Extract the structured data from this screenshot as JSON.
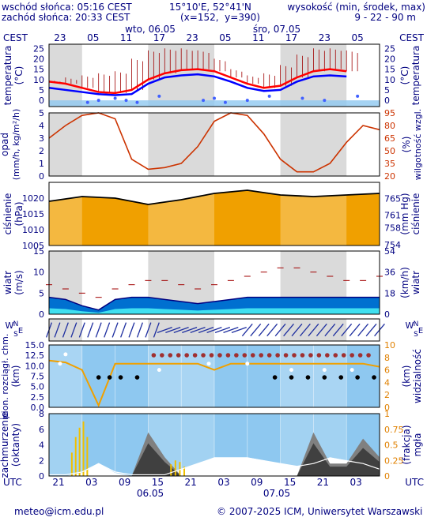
{
  "header": {
    "sunrise": "wschód słońca: 05:16 CEST",
    "sunset": "zachód słońca: 20:33 CEST",
    "coords": "15°10'E, 52°41'N",
    "grid": "(x=152,  y=390)",
    "elev_title": "wysokość (min, środek, max)",
    "elev_values": "9 - 22 - 90 m"
  },
  "top_axis": {
    "tz": "CEST",
    "day1": "wto, 06.05",
    "day2": "śro, 07.05",
    "hours": [
      "23",
      "05",
      "11",
      "17",
      "23",
      "05",
      "11",
      "17",
      "23",
      "05"
    ]
  },
  "bottom_axis": {
    "tz": "UTC",
    "hours": [
      "21",
      "03",
      "09",
      "15",
      "21",
      "03",
      "09",
      "15",
      "21",
      "03"
    ],
    "date1": "06.05",
    "date2": "07.05"
  },
  "footer": {
    "email": "meteo@icm.edu.pl",
    "copyright": "© 2007-2025 ICM, Uniwersytet Warszawski"
  },
  "colors": {
    "night": "#d3d3d3",
    "temp": "#ff0000",
    "dew": "#0000ff",
    "precip": "#00a0ff",
    "humidity": "#cc3300",
    "pressure_fill": "#f0a000",
    "wind": "#0070d0",
    "cloud_bg": "#8ec8f0",
    "visibility": "#f0a000"
  },
  "chart_data": [
    {
      "type": "line",
      "panel": "temperature",
      "ylabel_left": "temperatura (°C)",
      "ylabel_right": "temperatura (°C)",
      "yticks": [
        0,
        5,
        10,
        15,
        20,
        25
      ],
      "ylim": [
        -3,
        27
      ],
      "x_hours": [
        0,
        3,
        6,
        9,
        12,
        15,
        18,
        21,
        24,
        27,
        30,
        33,
        36,
        39,
        42,
        45,
        48,
        51,
        54
      ],
      "series": [
        {
          "role": "temperature",
          "values": [
            9,
            8,
            6,
            4,
            3.5,
            5,
            10,
            13,
            14.5,
            15,
            14,
            11,
            8,
            6,
            7,
            11,
            14,
            15,
            14
          ]
        },
        {
          "role": "dew point",
          "values": [
            6,
            5,
            4,
            3,
            2.5,
            3,
            8,
            11,
            12,
            12.5,
            11.5,
            9,
            6,
            4.5,
            5,
            9,
            11.5,
            12,
            11.5
          ]
        },
        {
          "role": "max",
          "values": [
            10,
            11,
            12,
            13,
            14,
            20,
            24,
            25,
            25,
            24,
            20,
            15,
            12,
            13,
            17,
            22,
            25,
            25,
            24
          ]
        }
      ]
    },
    {
      "type": "line",
      "panel": "precipitation-humidity",
      "ylabel_left": "opad (mm/h, kg/m²/h)",
      "ylabel_right": "(%) wilgotność wzgl.",
      "yticks_left": [
        0,
        1,
        2,
        3,
        4,
        5
      ],
      "yticks_right": [
        20,
        35,
        50,
        65,
        80,
        95
      ],
      "x_hours": [
        0,
        3,
        6,
        9,
        12,
        15,
        18,
        21,
        24,
        27,
        30,
        33,
        36,
        39,
        42,
        45,
        48,
        51,
        54,
        57,
        60
      ],
      "humidity": [
        65,
        80,
        92,
        95,
        88,
        40,
        28,
        30,
        35,
        55,
        85,
        95,
        92,
        70,
        40,
        25,
        25,
        35,
        60,
        80,
        75
      ]
    },
    {
      "type": "area",
      "panel": "pressure",
      "ylabel_left": "ciśnienie (hPa)",
      "ylabel_right": "(mm Hg) ciśnienie",
      "yticks_left": [
        1005,
        1010,
        1015,
        1020
      ],
      "yticks_right": [
        754,
        758,
        761,
        765
      ],
      "ylim": [
        1005,
        1025
      ],
      "x_hours": [
        0,
        6,
        12,
        18,
        24,
        30,
        36,
        42,
        48,
        54,
        60
      ],
      "values": [
        1019,
        1020.5,
        1020,
        1018,
        1019.5,
        1021.5,
        1022.5,
        1021,
        1020.5,
        1021,
        1021.5
      ]
    },
    {
      "type": "area",
      "panel": "wind",
      "ylabel_left": "wiatr (m/s)",
      "ylabel_right": "(km/h) wiatr",
      "yticks_left": [
        0,
        5,
        10,
        15
      ],
      "yticks_right": [
        0,
        18,
        36,
        54
      ],
      "ylim": [
        0,
        15
      ],
      "x_hours": [
        0,
        3,
        6,
        9,
        12,
        15,
        18,
        21,
        24,
        27,
        30,
        33,
        36,
        39,
        42,
        45,
        48,
        51,
        54,
        57,
        60
      ],
      "speed": [
        4,
        3.5,
        2,
        1,
        3.5,
        4,
        4,
        3.5,
        3,
        2.5,
        3,
        3.5,
        4,
        4,
        4,
        4,
        4,
        4,
        4,
        4,
        4
      ],
      "gust": [
        7,
        6,
        5,
        4,
        6,
        7,
        8,
        8,
        7,
        6,
        7,
        8,
        9,
        10,
        11,
        11,
        10,
        9,
        8,
        8,
        9
      ]
    },
    {
      "type": "scatter",
      "panel": "cloud-visibility",
      "ylabel_left": "pion. rozciągł. chm. (km)",
      "ylabel_right": "(km) widzialność",
      "yticks_left": [
        0.0,
        2.5,
        5.0,
        7.5,
        10.0,
        12.5,
        15.0
      ],
      "yticks_right": [
        0,
        2,
        4,
        6,
        8,
        10
      ],
      "x_hours": [
        0,
        3,
        6,
        9,
        12,
        15,
        18,
        21,
        24,
        27,
        30,
        33,
        36,
        39,
        42,
        45,
        48,
        51,
        54,
        57,
        60
      ],
      "visibility": [
        7.5,
        7.2,
        6,
        0.3,
        7,
        7,
        7,
        7,
        7,
        7,
        6,
        7,
        7,
        7,
        7,
        7,
        7,
        7,
        7,
        7,
        6.5
      ]
    },
    {
      "type": "area",
      "panel": "cloud-cover-fog",
      "ylabel_left": "zachmurzenie (oktanty)",
      "ylabel_right": "(frakcja) mgła",
      "yticks_left": [
        0,
        2,
        4,
        6,
        8
      ],
      "yticks_right": [
        0,
        0.25,
        0.5,
        0.75,
        1
      ],
      "x_hours": [
        0,
        3,
        6,
        9,
        12,
        15,
        18,
        21,
        24,
        27,
        30,
        33,
        36,
        39,
        42,
        45,
        48,
        51,
        54,
        57,
        60
      ],
      "low_cloud": [
        0,
        0,
        0,
        0,
        0,
        0,
        0,
        0,
        0,
        0,
        0,
        0,
        0,
        0,
        0,
        0,
        0,
        0,
        0,
        0,
        0
      ],
      "high_cloud": [
        0,
        0,
        0,
        0,
        0,
        0,
        7,
        3,
        0,
        0,
        0,
        0,
        0,
        0,
        0,
        0,
        7,
        2,
        2,
        6,
        3
      ],
      "fog": [
        0,
        0,
        0.05,
        0.2,
        0.05,
        0,
        0,
        0,
        0.1,
        0.2,
        0.3,
        0.3,
        0.3,
        0.25,
        0.2,
        0.15,
        0.2,
        0.3,
        0.25,
        0.2,
        0.1
      ]
    }
  ]
}
